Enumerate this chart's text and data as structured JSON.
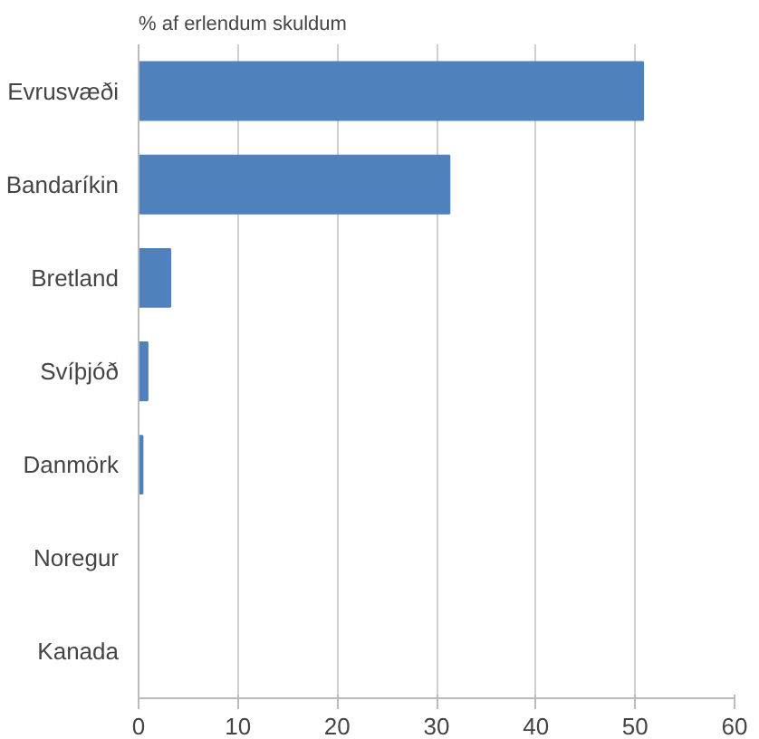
{
  "chart_data": {
    "type": "bar",
    "orientation": "horizontal",
    "title": "% af erlendum  skuldum",
    "categories": [
      "Evrusvæði",
      "Bandaríkin",
      "Bretland",
      "Svíþjóð",
      "Danmörk",
      "Noregur",
      "Kanada"
    ],
    "values": [
      50.8,
      31.3,
      3.2,
      0.9,
      0.4,
      0,
      0
    ],
    "color": "#4f81bd",
    "xlim": [
      0,
      60
    ],
    "xticks": [
      0,
      10,
      20,
      30,
      40,
      50,
      60
    ],
    "grid": "x"
  }
}
